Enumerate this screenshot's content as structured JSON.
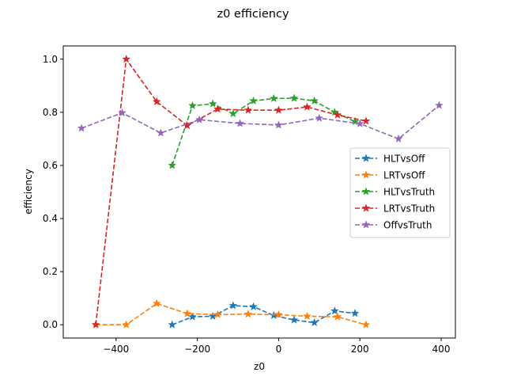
{
  "chart_data": {
    "type": "line",
    "title": "z0 efficiency",
    "xlabel": "z0",
    "ylabel": "efficiency",
    "xlim": [
      -530,
      435
    ],
    "ylim": [
      -0.05,
      1.05
    ],
    "xticks": [
      -400,
      -200,
      0,
      200,
      400
    ],
    "yticks": [
      0.0,
      0.2,
      0.4,
      0.6,
      0.8,
      1.0
    ],
    "xtick_labels": [
      "−400",
      "−200",
      "0",
      "200",
      "400"
    ],
    "ytick_labels": [
      "0.0",
      "0.2",
      "0.4",
      "0.6",
      "0.8",
      "1.0"
    ],
    "legend_position": "center-right",
    "grid": false,
    "series": [
      {
        "name": "HLTvsOff",
        "color": "#1f77b4",
        "marker": "star",
        "linestyle": "dashed",
        "x": [
          -262,
          -212,
          -162,
          -112,
          -62,
          -12,
          38,
          88,
          138,
          188
        ],
        "y": [
          0.0,
          0.03,
          0.032,
          0.072,
          0.068,
          0.035,
          0.018,
          0.008,
          0.052,
          0.043
        ]
      },
      {
        "name": "LRTvsOff",
        "color": "#ff7f0e",
        "marker": "star",
        "linestyle": "dashed",
        "x": [
          -450,
          -375,
          -300,
          -225,
          -150,
          -75,
          0,
          70,
          145,
          215
        ],
        "y": [
          0.0,
          0.0,
          0.08,
          0.042,
          0.038,
          0.04,
          0.038,
          0.032,
          0.03,
          0.0
        ]
      },
      {
        "name": "HLTvsTruth",
        "color": "#2ca02c",
        "marker": "star",
        "linestyle": "dashed",
        "x": [
          -262,
          -212,
          -162,
          -112,
          -62,
          -12,
          38,
          88,
          138,
          188
        ],
        "y": [
          0.6,
          0.825,
          0.832,
          0.795,
          0.843,
          0.852,
          0.853,
          0.843,
          0.8,
          0.765
        ]
      },
      {
        "name": "LRTvsTruth",
        "color": "#d62728",
        "marker": "star",
        "linestyle": "dashed",
        "x": [
          -450,
          -375,
          -300,
          -225,
          -150,
          -75,
          0,
          70,
          145,
          215
        ],
        "y": [
          0.0,
          1.0,
          0.84,
          0.75,
          0.812,
          0.808,
          0.808,
          0.82,
          0.79,
          0.767
        ]
      },
      {
        "name": "OffvsTruth",
        "color": "#9467bd",
        "marker": "star",
        "linestyle": "dashed",
        "x": [
          -485,
          -385,
          -290,
          -195,
          -95,
          0,
          100,
          200,
          295,
          395
        ],
        "y": [
          0.74,
          0.798,
          0.722,
          0.772,
          0.758,
          0.752,
          0.778,
          0.757,
          0.7,
          0.826
        ]
      }
    ]
  }
}
